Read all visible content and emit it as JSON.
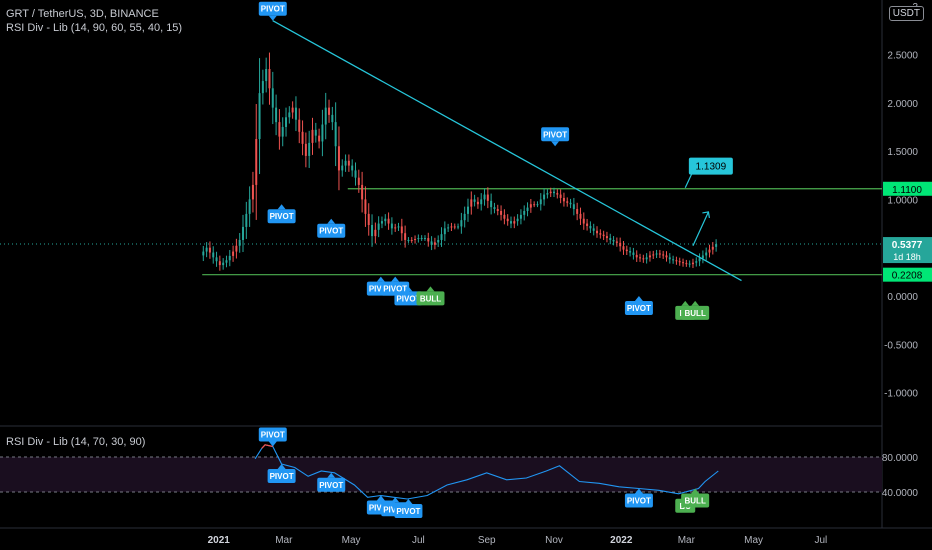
{
  "header": {
    "symbol": "GRT / TetherUS, 3D, BINANCE",
    "indicator": "RSI Div - Lib (14, 90, 60, 55, 40, 15)",
    "currency_badge": "USDT"
  },
  "rsi_pane": {
    "title": "RSI Div - Lib (14, 70, 30, 90)"
  },
  "colors": {
    "background": "#000000",
    "up": "#26a69a",
    "down": "#ef5350",
    "trendline": "#26c6da",
    "level": "#4caf50",
    "level_label_bg": "#00e676",
    "price_label_bg": "#26a69a",
    "pivot": "#2196f3",
    "bull": "#4caf50",
    "rsi": "#2196f3",
    "rsi_overbought": "#ef5350"
  },
  "chart_data": [
    {
      "type": "candlestick",
      "title": "GRT / TetherUS, 3D, BINANCE",
      "y_scale": "log",
      "y_ticks": [
        "3",
        "2.5000",
        "2.0000",
        "1.5000",
        "1.0000",
        "0.5000",
        "0.0000",
        "-0.5000",
        "-1.0000"
      ],
      "x_ticks": [
        "2021",
        "Mar",
        "May",
        "Jul",
        "Sep",
        "Nov",
        "2022",
        "Mar",
        "May",
        "Jul"
      ],
      "close_series": [
        [
          "2020-12-17",
          0.42
        ],
        [
          "2020-12-23",
          0.5
        ],
        [
          "2020-12-29",
          0.4
        ],
        [
          "2021-01-04",
          0.32
        ],
        [
          "2021-01-10",
          0.37
        ],
        [
          "2021-01-16",
          0.46
        ],
        [
          "2021-01-22",
          0.58
        ],
        [
          "2021-01-28",
          0.85
        ],
        [
          "2021-02-03",
          1.15
        ],
        [
          "2021-02-09",
          2.1
        ],
        [
          "2021-02-15",
          2.35
        ],
        [
          "2021-02-21",
          1.95
        ],
        [
          "2021-02-27",
          1.65
        ],
        [
          "2021-03-05",
          1.85
        ],
        [
          "2021-03-11",
          1.95
        ],
        [
          "2021-03-17",
          1.7
        ],
        [
          "2021-03-23",
          1.45
        ],
        [
          "2021-03-29",
          1.72
        ],
        [
          "2021-04-04",
          1.6
        ],
        [
          "2021-04-10",
          1.95
        ],
        [
          "2021-04-16",
          1.8
        ],
        [
          "2021-04-22",
          1.3
        ],
        [
          "2021-04-28",
          1.4
        ],
        [
          "2021-05-04",
          1.3
        ],
        [
          "2021-05-10",
          1.15
        ],
        [
          "2021-05-16",
          0.85
        ],
        [
          "2021-05-22",
          0.62
        ],
        [
          "2021-05-28",
          0.75
        ],
        [
          "2021-06-03",
          0.8
        ],
        [
          "2021-06-09",
          0.7
        ],
        [
          "2021-06-15",
          0.72
        ],
        [
          "2021-06-21",
          0.58
        ],
        [
          "2021-06-27",
          0.58
        ],
        [
          "2021-07-03",
          0.6
        ],
        [
          "2021-07-09",
          0.6
        ],
        [
          "2021-07-15",
          0.53
        ],
        [
          "2021-07-21",
          0.58
        ],
        [
          "2021-07-27",
          0.7
        ],
        [
          "2021-08-02",
          0.72
        ],
        [
          "2021-08-08",
          0.72
        ],
        [
          "2021-08-14",
          0.85
        ],
        [
          "2021-08-20",
          1.0
        ],
        [
          "2021-08-26",
          0.95
        ],
        [
          "2021-09-01",
          1.05
        ],
        [
          "2021-09-07",
          0.92
        ],
        [
          "2021-09-13",
          0.88
        ],
        [
          "2021-09-19",
          0.8
        ],
        [
          "2021-09-25",
          0.75
        ],
        [
          "2021-10-01",
          0.8
        ],
        [
          "2021-10-07",
          0.88
        ],
        [
          "2021-10-13",
          0.95
        ],
        [
          "2021-10-19",
          0.95
        ],
        [
          "2021-10-25",
          1.05
        ],
        [
          "2021-10-31",
          1.08
        ],
        [
          "2021-11-06",
          1.05
        ],
        [
          "2021-11-12",
          0.98
        ],
        [
          "2021-11-18",
          0.95
        ],
        [
          "2021-11-24",
          0.85
        ],
        [
          "2021-11-30",
          0.75
        ],
        [
          "2021-12-06",
          0.7
        ],
        [
          "2021-12-12",
          0.65
        ],
        [
          "2021-12-18",
          0.62
        ],
        [
          "2021-12-24",
          0.58
        ],
        [
          "2021-12-30",
          0.55
        ],
        [
          "2022-01-05",
          0.48
        ],
        [
          "2022-01-11",
          0.45
        ],
        [
          "2022-01-17",
          0.4
        ],
        [
          "2022-01-23",
          0.38
        ],
        [
          "2022-01-29",
          0.42
        ],
        [
          "2022-02-04",
          0.44
        ],
        [
          "2022-02-10",
          0.42
        ],
        [
          "2022-02-16",
          0.38
        ],
        [
          "2022-02-22",
          0.36
        ],
        [
          "2022-02-28",
          0.34
        ],
        [
          "2022-03-06",
          0.33
        ],
        [
          "2022-03-12",
          0.36
        ],
        [
          "2022-03-18",
          0.42
        ],
        [
          "2022-03-24",
          0.48
        ],
        [
          "2022-03-30",
          0.5377
        ]
      ],
      "price_lines": [
        {
          "label": "1.1100",
          "value": 1.11,
          "style": "level"
        },
        {
          "label": "0.5377",
          "sub": "1d 18h",
          "value": 0.5377,
          "style": "last"
        },
        {
          "label": "0.2208",
          "value": 0.2208,
          "style": "level"
        }
      ],
      "trendline": {
        "from": [
          "2021-02-19",
          2.85
        ],
        "to": [
          "2022-04-20",
          0.16
        ]
      },
      "projection": {
        "label": "1.1309",
        "from": [
          "2022-03-07",
          0.52
        ],
        "to": [
          "2022-03-21",
          0.87
        ]
      },
      "markers": [
        {
          "text": "PIVOT",
          "date": "2021-02-19",
          "value": 2.85,
          "pos": "above"
        },
        {
          "text": "PIVOT",
          "date": "2021-02-27",
          "value": 0.95,
          "pos": "below"
        },
        {
          "text": "PIVOT",
          "date": "2021-04-13",
          "value": 0.8,
          "pos": "below"
        },
        {
          "text": "PIVOT",
          "date": "2021-05-28",
          "value": 0.2,
          "pos": "below"
        },
        {
          "text": "PIVOT",
          "date": "2021-06-10",
          "value": 0.2,
          "pos": "below"
        },
        {
          "text": "PIVOT",
          "date": "2021-06-22",
          "value": 0.1,
          "pos": "below"
        },
        {
          "text": "BULL",
          "date": "2021-07-12",
          "value": 0.1,
          "pos": "below",
          "kind": "bull"
        },
        {
          "text": "PIVOT",
          "date": "2021-11-02",
          "value": 1.55,
          "pos": "above"
        },
        {
          "text": "PIVOT",
          "date": "2022-01-17",
          "value": 0.0,
          "pos": "below"
        },
        {
          "text": "BU",
          "date": "2022-02-28",
          "value": -0.05,
          "pos": "below",
          "kind": "bull"
        },
        {
          "text": "BULL",
          "date": "2022-03-09",
          "value": -0.05,
          "pos": "below",
          "kind": "bull"
        }
      ]
    },
    {
      "type": "line",
      "title": "RSI Div - Lib (14, 70, 30, 90)",
      "y_ticks": [
        "80.0000",
        "40.0000"
      ],
      "levels": [
        80,
        40
      ],
      "overbought": 90,
      "values": [
        [
          "2021-02-03",
          78
        ],
        [
          "2021-02-09",
          90
        ],
        [
          "2021-02-12",
          94
        ],
        [
          "2021-02-19",
          92
        ],
        [
          "2021-02-27",
          72
        ],
        [
          "2021-03-11",
          68
        ],
        [
          "2021-03-23",
          58
        ],
        [
          "2021-04-04",
          64
        ],
        [
          "2021-04-16",
          62
        ],
        [
          "2021-05-04",
          48
        ],
        [
          "2021-05-16",
          34
        ],
        [
          "2021-05-28",
          36
        ],
        [
          "2021-06-09",
          34
        ],
        [
          "2021-06-21",
          32
        ],
        [
          "2021-07-09",
          36
        ],
        [
          "2021-07-27",
          48
        ],
        [
          "2021-08-14",
          54
        ],
        [
          "2021-09-01",
          62
        ],
        [
          "2021-09-19",
          54
        ],
        [
          "2021-10-07",
          56
        ],
        [
          "2021-10-25",
          64
        ],
        [
          "2021-11-06",
          70
        ],
        [
          "2021-11-24",
          52
        ],
        [
          "2021-12-12",
          50
        ],
        [
          "2021-12-30",
          46
        ],
        [
          "2022-01-17",
          44
        ],
        [
          "2022-02-04",
          42
        ],
        [
          "2022-02-22",
          38
        ],
        [
          "2022-03-12",
          44
        ],
        [
          "2022-03-18",
          52
        ],
        [
          "2022-03-30",
          64
        ]
      ],
      "markers": [
        {
          "text": "PIVOT",
          "date": "2021-02-19",
          "pos": "above"
        },
        {
          "text": "PIVOT",
          "date": "2021-02-27",
          "pos": "below"
        },
        {
          "text": "PIVOT",
          "date": "2021-04-13",
          "pos": "below"
        },
        {
          "text": "PIVOT",
          "date": "2021-05-28",
          "pos": "below"
        },
        {
          "text": "PIVOT",
          "date": "2021-06-10",
          "pos": "below"
        },
        {
          "text": "PIVOT",
          "date": "2021-06-22",
          "pos": "below"
        },
        {
          "text": "PIVOT",
          "date": "2022-01-17",
          "pos": "below"
        },
        {
          "text": "BU",
          "date": "2022-02-28",
          "pos": "below",
          "kind": "bull"
        },
        {
          "text": "BULL",
          "date": "2022-03-09",
          "pos": "below",
          "kind": "bull"
        }
      ]
    }
  ]
}
